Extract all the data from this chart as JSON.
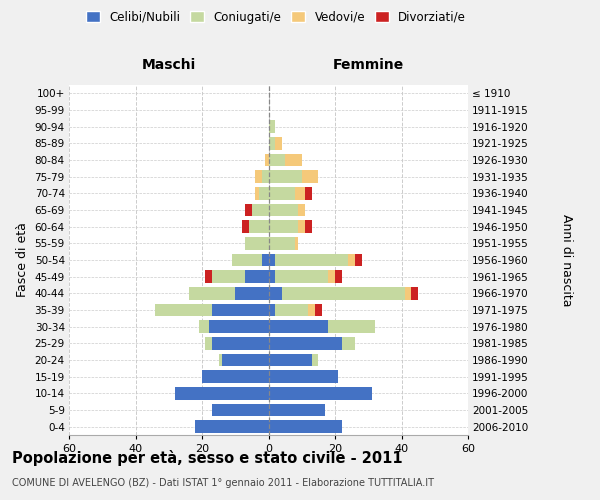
{
  "age_groups": [
    "0-4",
    "5-9",
    "10-14",
    "15-19",
    "20-24",
    "25-29",
    "30-34",
    "35-39",
    "40-44",
    "45-49",
    "50-54",
    "55-59",
    "60-64",
    "65-69",
    "70-74",
    "75-79",
    "80-84",
    "85-89",
    "90-94",
    "95-99",
    "100+"
  ],
  "birth_years": [
    "2006-2010",
    "2001-2005",
    "1996-2000",
    "1991-1995",
    "1986-1990",
    "1981-1985",
    "1976-1980",
    "1971-1975",
    "1966-1970",
    "1961-1965",
    "1956-1960",
    "1951-1955",
    "1946-1950",
    "1941-1945",
    "1936-1940",
    "1931-1935",
    "1926-1930",
    "1921-1925",
    "1916-1920",
    "1911-1915",
    "≤ 1910"
  ],
  "maschi": {
    "celibi": [
      22,
      17,
      28,
      20,
      14,
      17,
      18,
      17,
      10,
      7,
      2,
      0,
      0,
      0,
      0,
      0,
      0,
      0,
      0,
      0,
      0
    ],
    "coniugati": [
      0,
      0,
      0,
      0,
      1,
      2,
      3,
      17,
      14,
      10,
      9,
      7,
      6,
      5,
      3,
      2,
      0,
      0,
      0,
      0,
      0
    ],
    "vedovi": [
      0,
      0,
      0,
      0,
      0,
      0,
      0,
      0,
      0,
      0,
      0,
      0,
      0,
      0,
      1,
      2,
      1,
      0,
      0,
      0,
      0
    ],
    "divorziati": [
      0,
      0,
      0,
      0,
      0,
      0,
      0,
      0,
      0,
      2,
      0,
      0,
      2,
      2,
      0,
      0,
      0,
      0,
      0,
      0,
      0
    ]
  },
  "femmine": {
    "nubili": [
      22,
      17,
      31,
      21,
      13,
      22,
      18,
      2,
      4,
      2,
      2,
      0,
      0,
      0,
      0,
      0,
      0,
      0,
      0,
      0,
      0
    ],
    "coniugate": [
      0,
      0,
      0,
      0,
      2,
      4,
      14,
      10,
      37,
      16,
      22,
      8,
      9,
      9,
      8,
      10,
      5,
      2,
      2,
      0,
      0
    ],
    "vedove": [
      0,
      0,
      0,
      0,
      0,
      0,
      0,
      2,
      2,
      2,
      2,
      1,
      2,
      2,
      3,
      5,
      5,
      2,
      0,
      0,
      0
    ],
    "divorziate": [
      0,
      0,
      0,
      0,
      0,
      0,
      0,
      2,
      2,
      2,
      2,
      0,
      2,
      0,
      2,
      0,
      0,
      0,
      0,
      0,
      0
    ]
  },
  "colors": {
    "celibi": "#4472c4",
    "coniugati": "#c5d9a0",
    "vedovi": "#f5c97a",
    "divorziati": "#cc2222"
  },
  "xlim": 60,
  "title": "Popolazione per età, sesso e stato civile - 2011",
  "subtitle": "COMUNE DI AVELENGO (BZ) - Dati ISTAT 1° gennaio 2011 - Elaborazione TUTTITALIA.IT",
  "ylabel_left": "Fasce di età",
  "ylabel_right": "Anni di nascita",
  "xlabel_left": "Maschi",
  "xlabel_right": "Femmine",
  "bg_color": "#f0f0f0",
  "plot_bg": "#ffffff",
  "grid_color": "#cccccc"
}
